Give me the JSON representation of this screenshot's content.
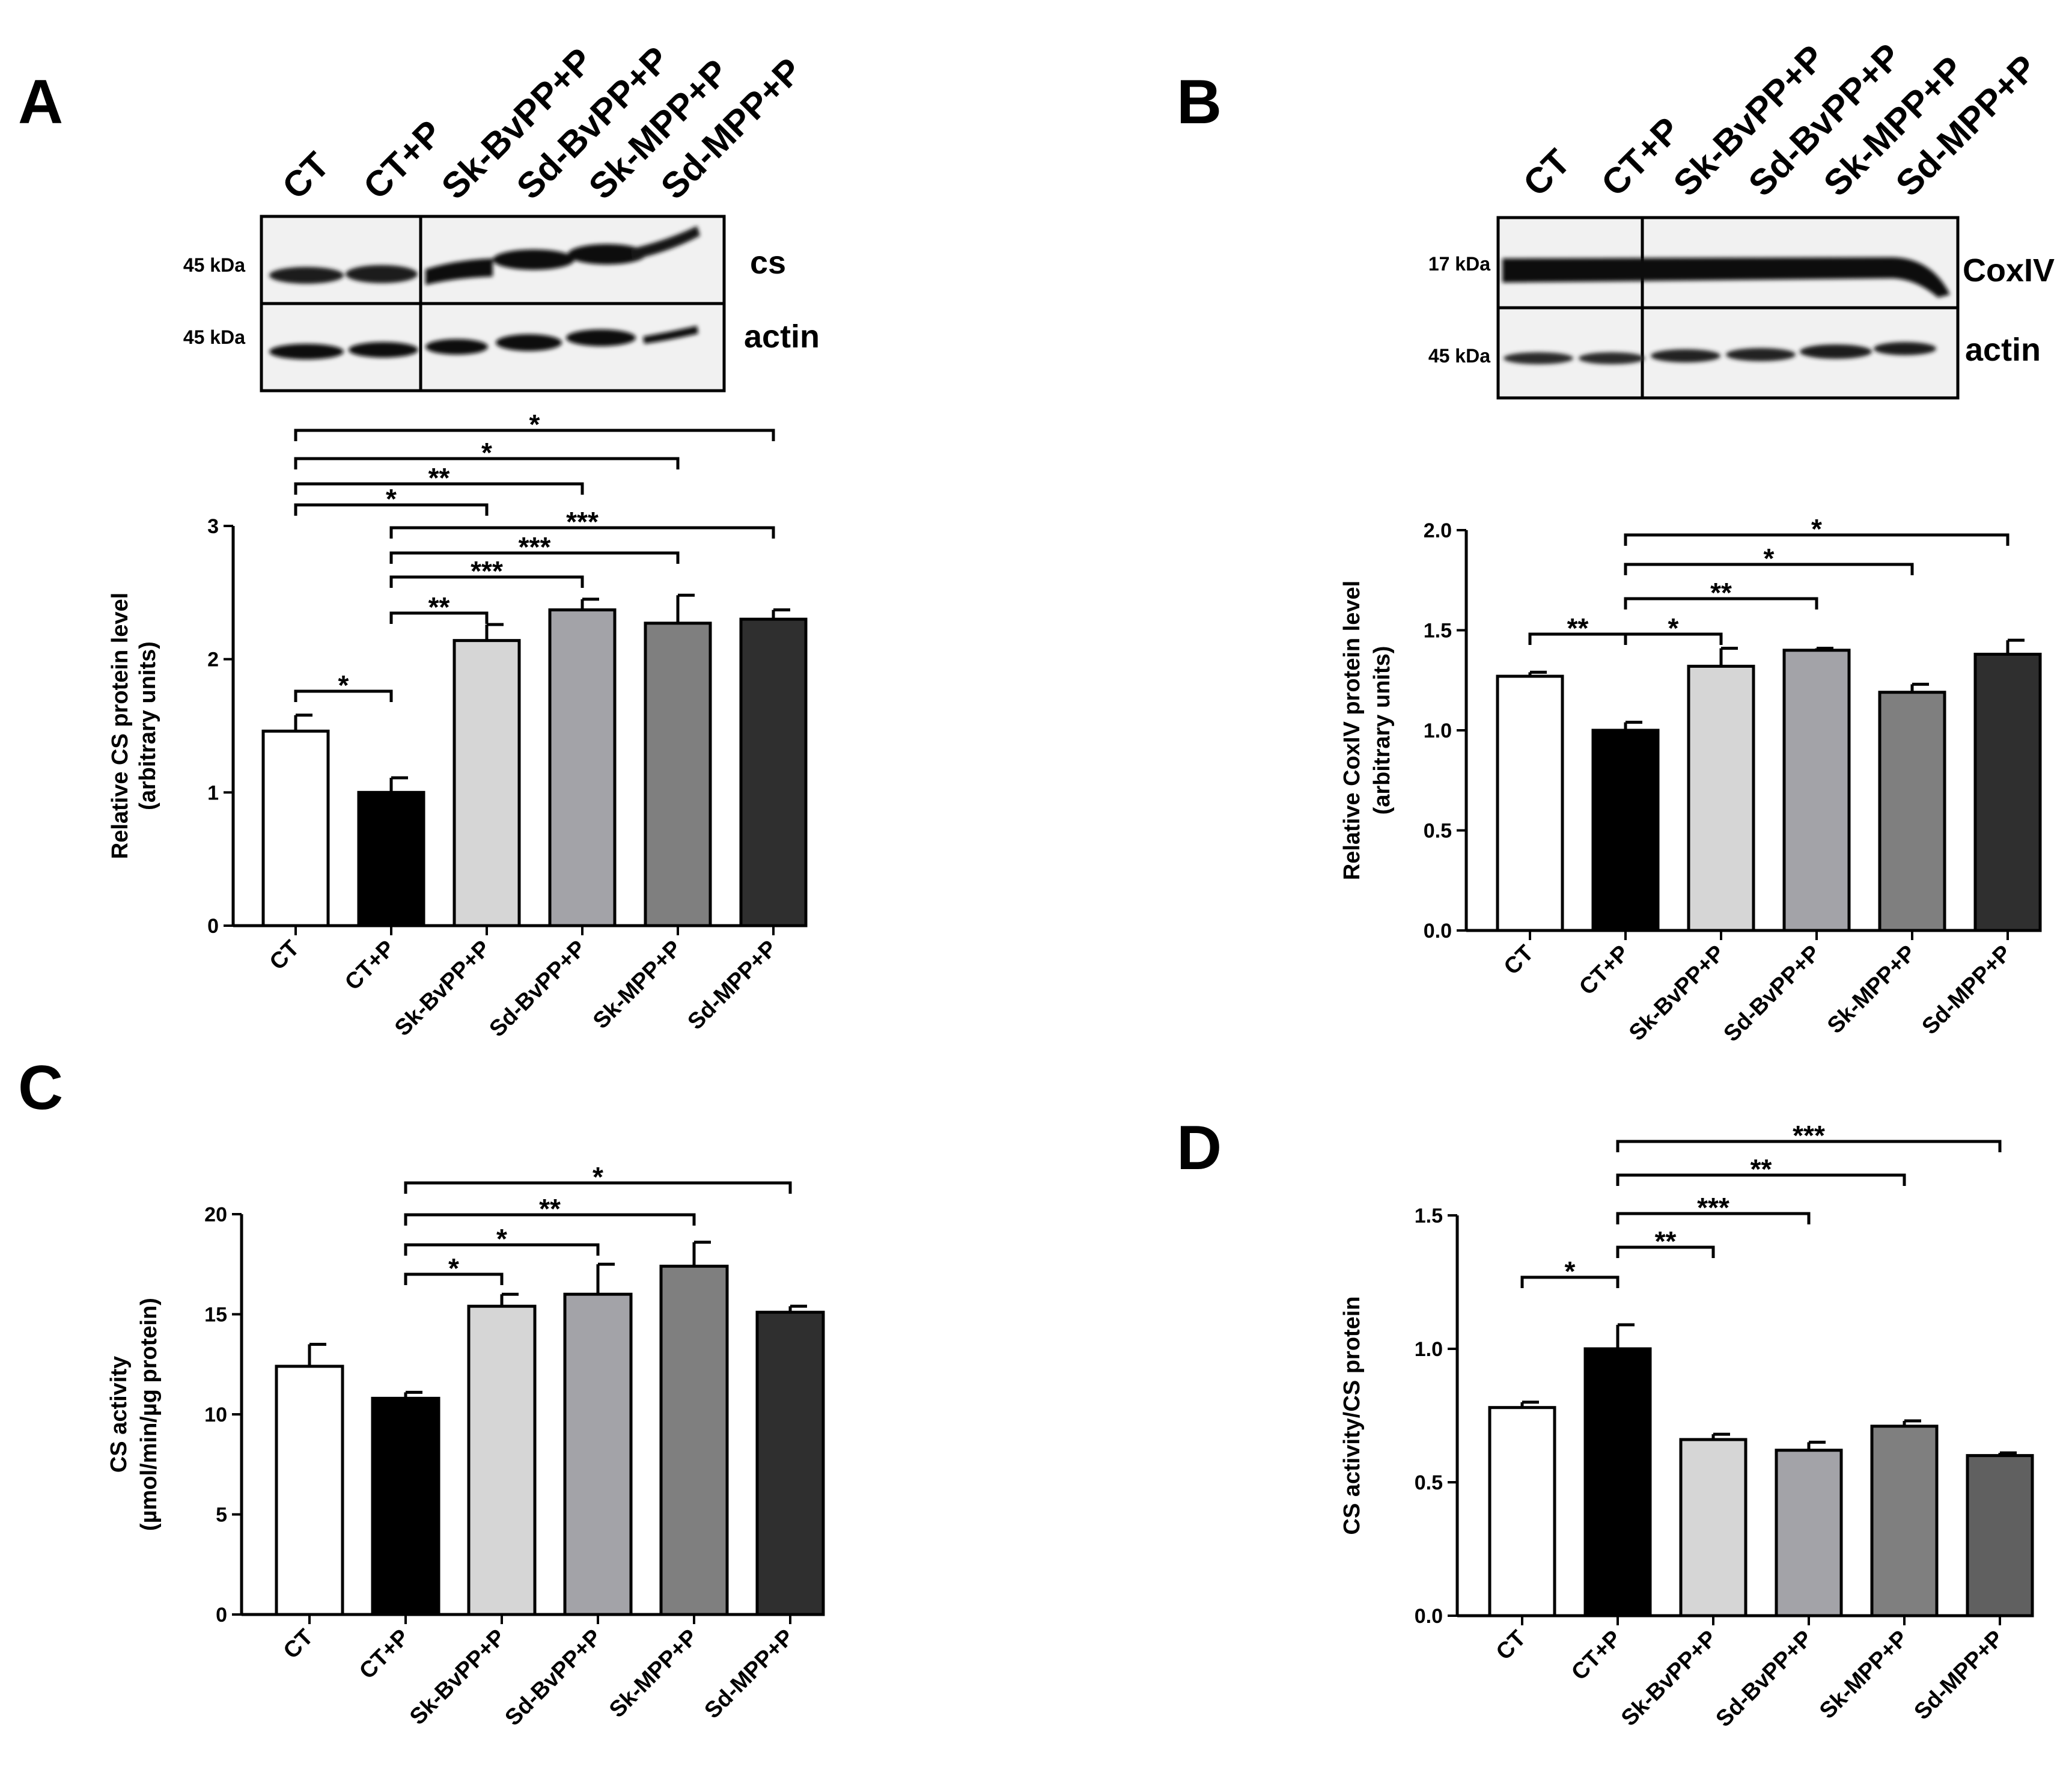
{
  "lanes": [
    "CT",
    "CT+P",
    "Sk-BvPP+P",
    "Sd-BvPP+P",
    "Sk-MPP+P",
    "Sd-MPP+P"
  ],
  "panels": [
    "A",
    "B",
    "C",
    "D"
  ],
  "colors": {
    "bars": [
      "#ffffff",
      "#000000",
      "#d6d6d6",
      "#a3a3a8",
      "#7f7f7f",
      "#2f2f2f"
    ],
    "bars_d": [
      "#ffffff",
      "#000000",
      "#d6d6d6",
      "#a3a3a8",
      "#7f7f7f",
      "#606060"
    ]
  },
  "blots": [
    {
      "panel": "A",
      "rows": [
        {
          "kda": "45 kDa",
          "protein": "cs"
        },
        {
          "kda": "45 kDa",
          "protein": "actin"
        }
      ]
    },
    {
      "panel": "B",
      "rows": [
        {
          "kda": "17 kDa",
          "protein": "CoxIV"
        },
        {
          "kda": "45 kDa",
          "protein": "actin"
        }
      ]
    }
  ],
  "chart_data": [
    {
      "panel": "A",
      "type": "bar",
      "categories": [
        "CT",
        "CT+P",
        "Sk-BvPP+P",
        "Sd-BvPP+P",
        "Sk-MPP+P",
        "Sd-MPP+P"
      ],
      "values": [
        1.46,
        1.0,
        2.14,
        2.37,
        2.27,
        2.3
      ],
      "errors": [
        0.12,
        0.11,
        0.12,
        0.08,
        0.21,
        0.07
      ],
      "ylabel": [
        "Relative CS protein level",
        "(arbitrary units)"
      ],
      "ylim": [
        0,
        3
      ],
      "yticks": [
        "0",
        "1",
        "2",
        "3"
      ],
      "comparisons": [
        {
          "from": 0,
          "to": 1,
          "label": "*"
        },
        {
          "from": 1,
          "to": 2,
          "label": "**"
        },
        {
          "from": 1,
          "to": 3,
          "label": "***"
        },
        {
          "from": 1,
          "to": 4,
          "label": "***"
        },
        {
          "from": 1,
          "to": 5,
          "label": "***"
        },
        {
          "from": 0,
          "to": 2,
          "label": "*"
        },
        {
          "from": 0,
          "to": 3,
          "label": "**"
        },
        {
          "from": 0,
          "to": 4,
          "label": "*"
        },
        {
          "from": 0,
          "to": 5,
          "label": "*"
        }
      ]
    },
    {
      "panel": "B",
      "type": "bar",
      "categories": [
        "CT",
        "CT+P",
        "Sk-BvPP+P",
        "Sd-BvPP+P",
        "Sk-MPP+P",
        "Sd-MPP+P"
      ],
      "values": [
        1.27,
        1.0,
        1.32,
        1.4,
        1.19,
        1.38
      ],
      "errors": [
        0.02,
        0.04,
        0.09,
        0.01,
        0.04,
        0.07
      ],
      "ylabel": [
        "Relative CoxIV protein level",
        "(arbitrary units)"
      ],
      "ylim": [
        0,
        2
      ],
      "yticks": [
        "0.0",
        "0.5",
        "1.0",
        "1.5",
        "2.0"
      ],
      "comparisons": [
        {
          "from": 0,
          "to": 1,
          "label": "**"
        },
        {
          "from": 1,
          "to": 2,
          "label": "*"
        },
        {
          "from": 1,
          "to": 3,
          "label": "**"
        },
        {
          "from": 1,
          "to": 4,
          "label": "*"
        },
        {
          "from": 1,
          "to": 5,
          "label": "*"
        }
      ]
    },
    {
      "panel": "C",
      "type": "bar",
      "categories": [
        "CT",
        "CT+P",
        "Sk-BvPP+P",
        "Sd-BvPP+P",
        "Sk-MPP+P",
        "Sd-MPP+P"
      ],
      "values": [
        12.4,
        10.8,
        15.4,
        16.0,
        17.4,
        15.1
      ],
      "errors": [
        1.1,
        0.3,
        0.6,
        1.5,
        1.2,
        0.3
      ],
      "ylabel": [
        "CS activity",
        "(µmol/min/µg protein)"
      ],
      "ylim": [
        0,
        20
      ],
      "yticks": [
        "0",
        "5",
        "10",
        "15",
        "20"
      ],
      "comparisons": [
        {
          "from": 1,
          "to": 2,
          "label": "*"
        },
        {
          "from": 1,
          "to": 3,
          "label": "*"
        },
        {
          "from": 1,
          "to": 4,
          "label": "**"
        },
        {
          "from": 1,
          "to": 5,
          "label": "*"
        }
      ]
    },
    {
      "panel": "D",
      "type": "bar",
      "categories": [
        "CT",
        "CT+P",
        "Sk-BvPP+P",
        "Sd-BvPP+P",
        "Sk-MPP+P",
        "Sd-MPP+P"
      ],
      "values": [
        0.78,
        1.0,
        0.66,
        0.62,
        0.71,
        0.6
      ],
      "errors": [
        0.02,
        0.09,
        0.02,
        0.03,
        0.02,
        0.01
      ],
      "ylabel": [
        "CS activity/CS protein"
      ],
      "ylim": [
        0,
        1.5
      ],
      "yticks": [
        "0.0",
        "0.5",
        "1.0",
        "1.5"
      ],
      "comparisons": [
        {
          "from": 0,
          "to": 1,
          "label": "*"
        },
        {
          "from": 1,
          "to": 2,
          "label": "**"
        },
        {
          "from": 1,
          "to": 3,
          "label": "***"
        },
        {
          "from": 1,
          "to": 4,
          "label": "**"
        },
        {
          "from": 1,
          "to": 5,
          "label": "***"
        }
      ]
    }
  ]
}
